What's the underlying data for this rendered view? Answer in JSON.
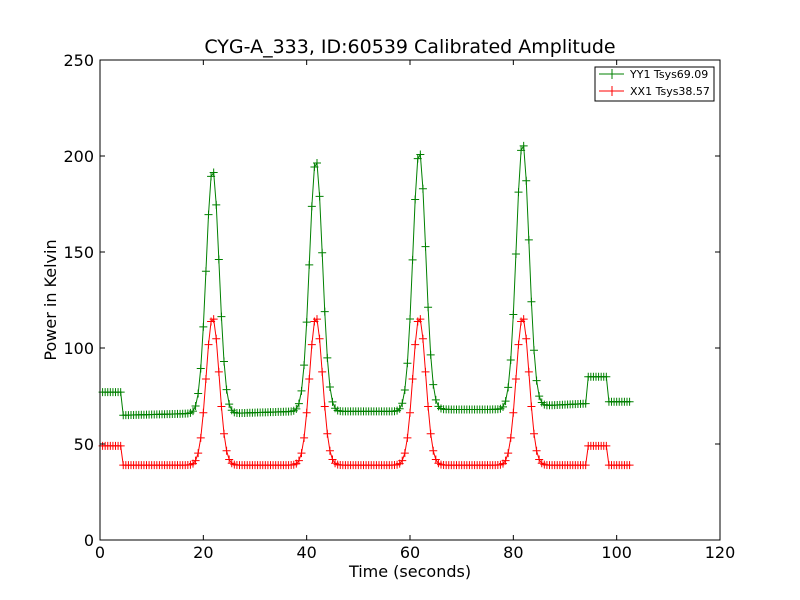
{
  "chart_data": {
    "type": "line",
    "title": "CYG-A_333, ID:60539 Calibrated Amplitude",
    "xlabel": "Time (seconds)",
    "ylabel": "Power in Kelvin",
    "xlim": [
      0,
      120
    ],
    "ylim": [
      0,
      250
    ],
    "xticks": [
      0,
      20,
      40,
      60,
      80,
      100,
      120
    ],
    "yticks": [
      0,
      50,
      100,
      150,
      200,
      250
    ],
    "grid": false,
    "legend_position": "top-right",
    "marker": "+",
    "sample_interval": 0.5,
    "series": [
      {
        "name": "YY1 Tsys69.09",
        "color": "#008000",
        "segments": [
          {
            "from": 0.5,
            "to": 4.0,
            "level": 77
          },
          {
            "from": 4.5,
            "to": 94.0,
            "baseline": [
              [
                4.5,
                65
              ],
              [
                20,
                66
              ],
              [
                26,
                66
              ],
              [
                38,
                67
              ],
              [
                46,
                67
              ],
              [
                58,
                67
              ],
              [
                66,
                68
              ],
              [
                78,
                68
              ],
              [
                86,
                70
              ],
              [
                94,
                71
              ]
            ],
            "peaks": [
              {
                "center": 21.8,
                "amplitude": 127,
                "sigma": 1.25
              },
              {
                "center": 41.8,
                "amplitude": 131,
                "sigma": 1.25
              },
              {
                "center": 61.8,
                "amplitude": 135,
                "sigma": 1.25
              },
              {
                "center": 81.8,
                "amplitude": 138,
                "sigma": 1.25
              }
            ]
          },
          {
            "from": 94.5,
            "to": 98.0,
            "level": 85
          },
          {
            "from": 98.5,
            "to": 102.5,
            "level": 72
          }
        ]
      },
      {
        "name": "XX1 Tsys38.57",
        "color": "#ff0000",
        "segments": [
          {
            "from": 0.5,
            "to": 4.0,
            "level": 49
          },
          {
            "from": 4.5,
            "to": 94.0,
            "baseline": [
              [
                4.5,
                39
              ],
              [
                94,
                39
              ]
            ],
            "peaks": [
              {
                "center": 21.8,
                "amplitude": 77,
                "sigma": 1.25
              },
              {
                "center": 41.8,
                "amplitude": 77,
                "sigma": 1.25
              },
              {
                "center": 61.8,
                "amplitude": 77,
                "sigma": 1.25
              },
              {
                "center": 81.8,
                "amplitude": 77,
                "sigma": 1.25
              }
            ]
          },
          {
            "from": 94.5,
            "to": 98.0,
            "level": 49
          },
          {
            "from": 98.5,
            "to": 102.5,
            "level": 39
          }
        ]
      }
    ]
  }
}
